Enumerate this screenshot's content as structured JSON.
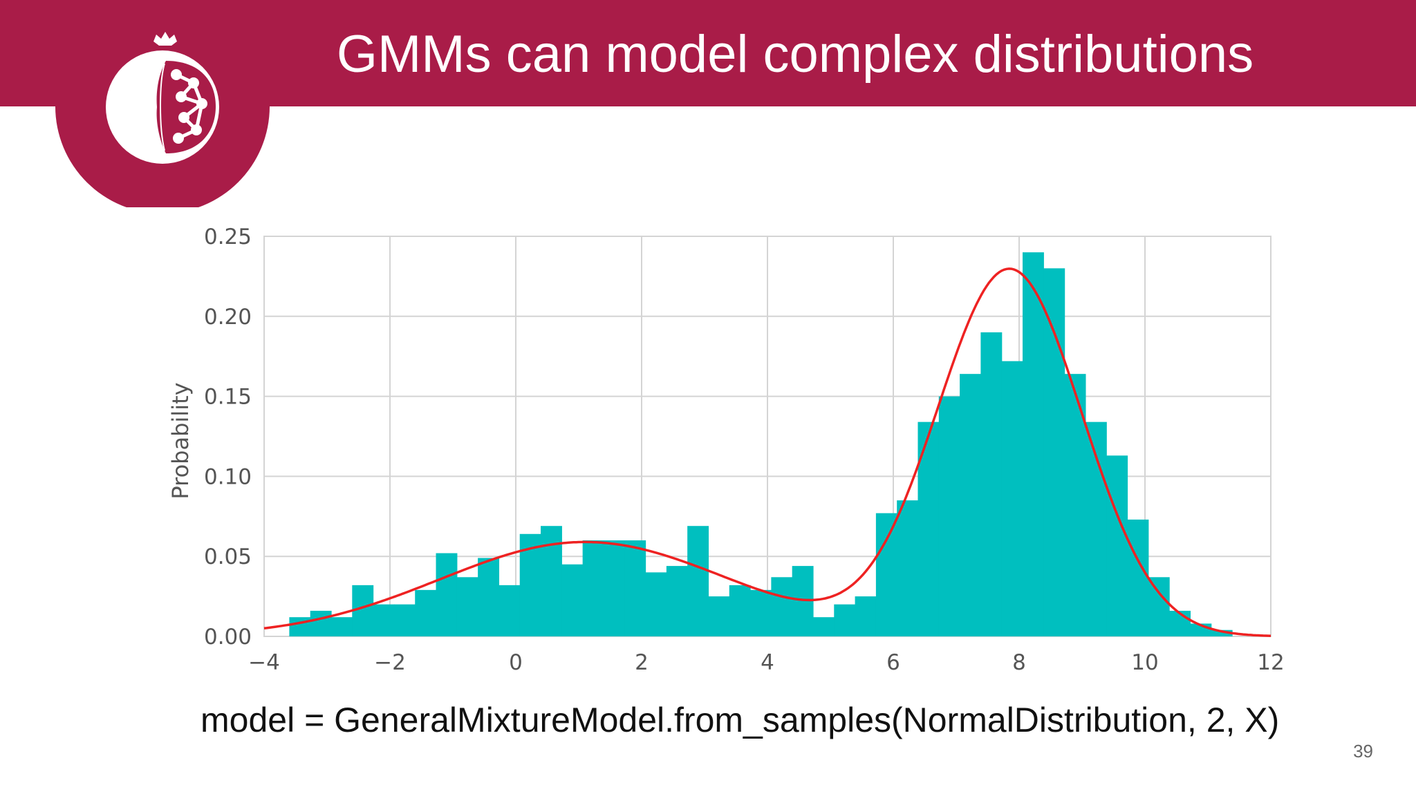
{
  "slide": {
    "title": "GMMs can model complex distributions",
    "code": "model = GeneralMixtureModel.from_samples(NormalDistribution, 2, X)",
    "page_number": "39",
    "logo_icon": "pomegranate-network-logo-icon"
  },
  "colors": {
    "header": "#a91c48",
    "bars": "#00bfbf",
    "curve": "#ee2222",
    "grid": "#d4d4d4"
  },
  "chart_data": {
    "type": "bar",
    "title": "",
    "xlabel": "",
    "ylabel": "Probability",
    "xlim": [
      -4,
      12
    ],
    "ylim": [
      0,
      0.25
    ],
    "xticks": [
      -4,
      -2,
      0,
      2,
      4,
      6,
      8,
      10,
      12
    ],
    "xtick_labels": [
      "−4",
      "−2",
      "0",
      "2",
      "4",
      "6",
      "8",
      "10",
      "12"
    ],
    "yticks": [
      0,
      0.05,
      0.1,
      0.15,
      0.2,
      0.25
    ],
    "ytick_labels": [
      "0.00",
      "0.05",
      "0.10",
      "0.15",
      "0.20",
      "0.25"
    ],
    "grid": true,
    "series": [
      {
        "kind": "histogram",
        "bin_start": -3.6,
        "bin_width": 0.333,
        "values": [
          0.012,
          0.016,
          0.012,
          0.032,
          0.02,
          0.02,
          0.029,
          0.052,
          0.037,
          0.049,
          0.032,
          0.064,
          0.069,
          0.045,
          0.06,
          0.06,
          0.06,
          0.04,
          0.044,
          0.069,
          0.025,
          0.032,
          0.029,
          0.037,
          0.044,
          0.012,
          0.02,
          0.025,
          0.077,
          0.085,
          0.134,
          0.15,
          0.164,
          0.19,
          0.172,
          0.24,
          0.23,
          0.164,
          0.134,
          0.113,
          0.073,
          0.037,
          0.016,
          0.008,
          0.004
        ]
      },
      {
        "kind": "line",
        "components": [
          {
            "weight": 0.34,
            "mean": 1.1,
            "std": 2.3
          },
          {
            "weight": 0.66,
            "mean": 7.85,
            "std": 1.15
          }
        ]
      }
    ]
  }
}
